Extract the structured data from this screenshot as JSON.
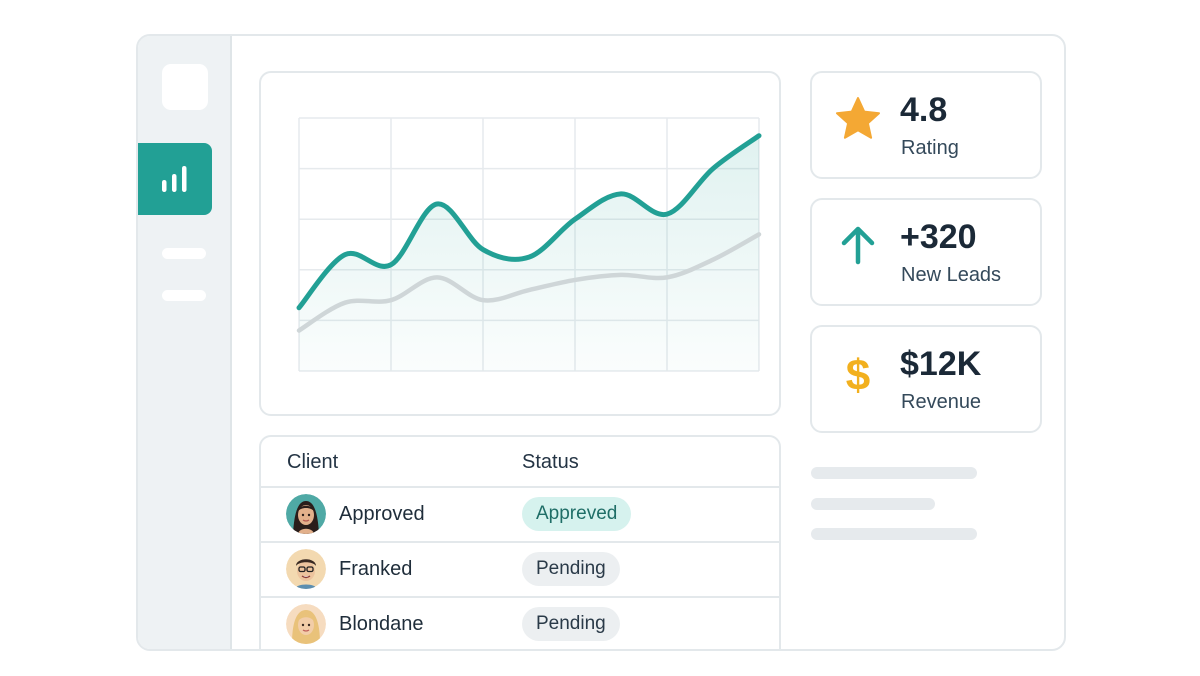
{
  "colors": {
    "accent": "#22a095",
    "secondary_line": "#cfd6d8",
    "star": "#f4a834",
    "arrow": "#22a095",
    "dollar": "#f2b01e",
    "approved_bg": "#d6f2ee",
    "pending_bg": "#eceff1"
  },
  "sidebar": {
    "items": [
      {
        "icon": "logo-placeholder"
      },
      {
        "icon": "bar-chart-icon",
        "active": true
      },
      {
        "icon": "menu-line"
      },
      {
        "icon": "menu-line"
      }
    ]
  },
  "stats": [
    {
      "icon": "star-icon",
      "value": "4.8",
      "label": "Rating"
    },
    {
      "icon": "arrow-up-icon",
      "value": "+320",
      "label": "New Leads"
    },
    {
      "icon": "dollar-icon",
      "value": "$12K",
      "label": "Revenue"
    }
  ],
  "table": {
    "headers": {
      "client": "Client",
      "status": "Status"
    },
    "rows": [
      {
        "client": "Approved",
        "status": "Appreved",
        "status_type": "approved"
      },
      {
        "client": "Franked",
        "status": "Pending",
        "status_type": "pending"
      },
      {
        "client": "Blondane",
        "status": "Pending",
        "status_type": "pending"
      }
    ]
  },
  "chart_data": {
    "type": "line",
    "x": [
      0,
      1,
      2,
      3,
      4,
      5,
      6,
      7,
      8,
      9,
      10
    ],
    "ylim": [
      0,
      100
    ],
    "grid": true,
    "legend": "none",
    "series": [
      {
        "values": [
          25,
          46,
          42,
          66,
          48,
          45,
          60,
          70,
          62,
          80,
          93
        ],
        "color": "#22a095",
        "filled": true
      },
      {
        "values": [
          16,
          27,
          28,
          37,
          28,
          32,
          36,
          38,
          37,
          44,
          54
        ],
        "color": "#cfd6d8",
        "filled": false
      }
    ]
  }
}
